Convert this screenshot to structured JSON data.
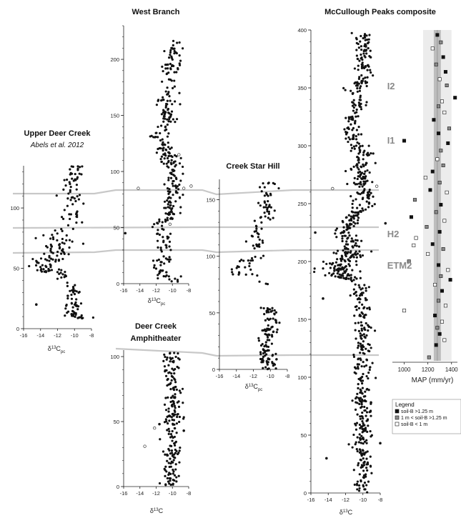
{
  "figure": {
    "axis_symbol": "δ",
    "axis_sup": "13",
    "axis_base": "C",
    "axis_sub": "pc",
    "colors": {
      "filled": "#111111",
      "open_stroke": "#333333",
      "correlation_line": "#c8c8c8",
      "band_outer": "#ececec",
      "band_inner": "#bdbdbd",
      "label_gray": "#8a8a8a"
    }
  },
  "chart_data": [
    {
      "id": "udc",
      "type": "scatter",
      "title": "Upper Deer Creek",
      "subtitle": "Abels et al. 2012",
      "xlabel_has_sub": true,
      "xlim": [
        -16,
        -8
      ],
      "xticks": [
        -16,
        -14,
        -12,
        -10,
        -8
      ],
      "ylim": [
        0,
        135
      ],
      "yticks": [
        0,
        50,
        100
      ],
      "bands": [
        {
          "y1": 8,
          "y2": 25,
          "seed": 11,
          "n": 42,
          "sd": 0.55,
          "t1": 0,
          "t2": 1
        },
        {
          "y1": 25,
          "y2": 45,
          "seed": 12,
          "n": 24,
          "sd": 0.5,
          "t1": 1,
          "t2": 0
        },
        {
          "y1": 45,
          "y2": 58,
          "seed": 13,
          "n": 45,
          "sd": 0.8,
          "t1": 0,
          "t2": 0
        },
        {
          "y1": 58,
          "y2": 85,
          "seed": 14,
          "n": 48,
          "sd": 1.0,
          "t1": 0,
          "t2": 0
        },
        {
          "y1": 85,
          "y2": 135,
          "seed": 15,
          "n": 60,
          "sd": 0.6,
          "t1": 0,
          "t2": 0
        }
      ],
      "centers": [
        [
          0,
          -9.9
        ],
        [
          10,
          -9.7
        ],
        [
          20,
          -10.3
        ],
        [
          30,
          -10.2
        ],
        [
          36,
          -10.5
        ],
        [
          45,
          -11.5
        ],
        [
          50,
          -13.5
        ],
        [
          55,
          -14.2
        ],
        [
          60,
          -12.0
        ],
        [
          70,
          -11.8
        ],
        [
          80,
          -11.5
        ],
        [
          88,
          -10.0
        ],
        [
          95,
          -10.2
        ],
        [
          105,
          -10.0
        ],
        [
          115,
          -10.4
        ],
        [
          125,
          -10.2
        ],
        [
          135,
          -9.8
        ]
      ],
      "extra": [
        {
          "x": -14.5,
          "y": 20,
          "open": false
        }
      ]
    },
    {
      "id": "wb",
      "type": "scatter",
      "title": "West Branch",
      "xlabel_has_sub": true,
      "xlim": [
        -16,
        -8
      ],
      "xticks": [
        -16,
        -14,
        -12,
        -10,
        -8
      ],
      "ylim": [
        0,
        230
      ],
      "yticks": [
        0,
        50,
        100,
        150,
        200
      ],
      "bands": [
        {
          "y1": 0,
          "y2": 30,
          "seed": 21,
          "n": 38,
          "sd": 0.7,
          "t1": 0,
          "t2": 0
        },
        {
          "y1": 30,
          "y2": 60,
          "seed": 22,
          "n": 40,
          "sd": 0.6,
          "t1": 0,
          "t2": 0
        },
        {
          "y1": 60,
          "y2": 112,
          "seed": 23,
          "n": 95,
          "sd": 0.55,
          "t1": 0,
          "t2": 0
        },
        {
          "y1": 112,
          "y2": 162,
          "seed": 24,
          "n": 90,
          "sd": 0.6,
          "t1": 0,
          "t2": 0
        },
        {
          "y1": 162,
          "y2": 218,
          "seed": 25,
          "n": 70,
          "sd": 0.55,
          "t1": 0,
          "t2": 0
        }
      ],
      "centers": [
        [
          0,
          -9.8
        ],
        [
          10,
          -11.6
        ],
        [
          20,
          -11.5
        ],
        [
          30,
          -10.5
        ],
        [
          42,
          -11.4
        ],
        [
          50,
          -12.0
        ],
        [
          58,
          -10.5
        ],
        [
          70,
          -9.7
        ],
        [
          85,
          -9.8
        ],
        [
          100,
          -10.0
        ],
        [
          112,
          -10.2
        ],
        [
          125,
          -11.3
        ],
        [
          132,
          -11.8
        ],
        [
          145,
          -10.5
        ],
        [
          155,
          -10.8
        ],
        [
          165,
          -11.0
        ],
        [
          180,
          -10.0
        ],
        [
          195,
          -10.2
        ],
        [
          205,
          -9.8
        ],
        [
          218,
          -10.0
        ]
      ],
      "extra": [
        {
          "x": -15.8,
          "y": 45,
          "open": false
        },
        {
          "x": -14.2,
          "y": 85,
          "open": true
        },
        {
          "x": -8.6,
          "y": 85,
          "open": true
        },
        {
          "x": -7.7,
          "y": 87,
          "open": true
        },
        {
          "x": -9.2,
          "y": 115,
          "open": true
        },
        {
          "x": -10.3,
          "y": 53,
          "open": true
        }
      ]
    },
    {
      "id": "csh",
      "type": "scatter",
      "title": "Creek Star Hill",
      "xlabel_has_sub": true,
      "xlim": [
        -16,
        -8
      ],
      "xticks": [
        -16,
        -14,
        -12,
        -10,
        -8
      ],
      "ylim": [
        0,
        168
      ],
      "yticks": [
        0,
        50,
        100,
        150
      ],
      "bands": [
        {
          "y1": 0,
          "y2": 55,
          "seed": 31,
          "n": 110,
          "sd": 0.5,
          "t1": 0,
          "t2": 0
        },
        {
          "y1": 75,
          "y2": 78,
          "seed": 32,
          "n": 3,
          "sd": 0.3,
          "t1": 0,
          "t2": 0
        },
        {
          "y1": 82,
          "y2": 98,
          "seed": 33,
          "n": 22,
          "sd": 0.7,
          "t1": 0,
          "t2": 0
        },
        {
          "y1": 98,
          "y2": 165,
          "seed": 34,
          "n": 70,
          "sd": 0.55,
          "t1": 0,
          "t2": 0
        }
      ],
      "centers": [
        [
          0,
          -10.2
        ],
        [
          20,
          -10.5
        ],
        [
          40,
          -10.0
        ],
        [
          55,
          -10.2
        ],
        [
          75,
          -10.2
        ],
        [
          85,
          -13.5
        ],
        [
          92,
          -13.8
        ],
        [
          100,
          -11.0
        ],
        [
          110,
          -11.8
        ],
        [
          120,
          -12.0
        ],
        [
          130,
          -11.0
        ],
        [
          140,
          -10.0
        ],
        [
          150,
          -10.4
        ],
        [
          165,
          -10.3
        ]
      ],
      "extra": []
    },
    {
      "id": "dca",
      "type": "scatter",
      "title": "Deer Creek",
      "title2": "Amphitheater",
      "xlabel_has_sub": false,
      "xlim": [
        -16,
        -8
      ],
      "xticks": [
        -16,
        -14,
        -12,
        -10,
        -8
      ],
      "ylim": [
        0,
        105
      ],
      "yticks": [
        0,
        50,
        100
      ],
      "bands": [
        {
          "y1": 0,
          "y2": 103,
          "seed": 41,
          "n": 200,
          "sd": 0.55,
          "t1": 0,
          "t2": 0
        }
      ],
      "centers": [
        [
          0,
          -10.2
        ],
        [
          20,
          -10.0
        ],
        [
          40,
          -10.3
        ],
        [
          60,
          -9.9
        ],
        [
          80,
          -10.0
        ],
        [
          103,
          -10.2
        ]
      ],
      "extra": [
        {
          "x": -13.4,
          "y": 31,
          "open": true
        },
        {
          "x": -12.2,
          "y": 45,
          "open": true
        },
        {
          "x": -8.6,
          "y": 43,
          "open": false
        },
        {
          "x": -11.6,
          "y": 48,
          "open": false
        }
      ]
    },
    {
      "id": "mcp",
      "type": "scatter",
      "title": "McCullough Peaks composite",
      "xlabel_has_sub": false,
      "xlim": [
        -16,
        -8
      ],
      "xticks": [
        -16,
        -14,
        -12,
        -10,
        -8
      ],
      "ylim": [
        0,
        400
      ],
      "yticks": [
        0,
        50,
        100,
        150,
        200,
        250,
        300,
        350,
        400
      ],
      "event_labels": [
        {
          "text": "I2",
          "y": 352,
          "x": -7.2
        },
        {
          "text": "I1",
          "y": 305,
          "x": -7.2
        },
        {
          "text": "H2",
          "y": 224,
          "x": -7.2
        },
        {
          "text": "ETM2",
          "y": 197,
          "x": -7.2
        }
      ],
      "bands": [
        {
          "y1": 0,
          "y2": 185,
          "seed": 51,
          "n": 320,
          "sd": 0.5,
          "t1": 0,
          "t2": 0
        },
        {
          "y1": 185,
          "y2": 210,
          "seed": 52,
          "n": 120,
          "sd": 0.9,
          "t1": 0,
          "t2": 0
        },
        {
          "y1": 210,
          "y2": 300,
          "seed": 53,
          "n": 220,
          "sd": 0.6,
          "t1": 0,
          "t2": 0
        },
        {
          "y1": 300,
          "y2": 398,
          "seed": 54,
          "n": 170,
          "sd": 0.55,
          "t1": 0,
          "t2": 0
        }
      ],
      "centers": [
        [
          0,
          -10.2
        ],
        [
          50,
          -10.0
        ],
        [
          100,
          -10.0
        ],
        [
          150,
          -10.0
        ],
        [
          180,
          -10.3
        ],
        [
          188,
          -12.5
        ],
        [
          195,
          -13.0
        ],
        [
          205,
          -11.5
        ],
        [
          215,
          -11.2
        ],
        [
          225,
          -12.2
        ],
        [
          235,
          -11.5
        ],
        [
          250,
          -9.8
        ],
        [
          265,
          -10.2
        ],
        [
          280,
          -10.3
        ],
        [
          295,
          -10.0
        ],
        [
          310,
          -11.3
        ],
        [
          320,
          -11.4
        ],
        [
          335,
          -10.5
        ],
        [
          345,
          -11.0
        ],
        [
          360,
          -10.0
        ],
        [
          380,
          -9.8
        ],
        [
          398,
          -10.0
        ]
      ],
      "extra": [
        {
          "x": -14.2,
          "y": 30,
          "open": false
        },
        {
          "x": -14.6,
          "y": 168,
          "open": false
        },
        {
          "x": -15.5,
          "y": 225,
          "open": false
        },
        {
          "x": -13.5,
          "y": 263,
          "open": true
        },
        {
          "x": -8.4,
          "y": 265,
          "open": true
        },
        {
          "x": -8.0,
          "y": 43,
          "open": false
        },
        {
          "x": -7.4,
          "y": 233,
          "open": false
        }
      ]
    },
    {
      "id": "map",
      "type": "scatter",
      "xlabel": "MAP (mm/yr)",
      "xlim": [
        900,
        1450
      ],
      "xticks": [
        1000,
        1200,
        1400
      ],
      "ylim": [
        130,
        400
      ],
      "yticks": [],
      "mean_line": 1280,
      "band_outer": [
        1160,
        1400
      ],
      "band_inner": [
        1250,
        1310
      ],
      "points": [
        {
          "x": 1280,
          "y": 396,
          "t": 0
        },
        {
          "x": 1310,
          "y": 390,
          "t": 1
        },
        {
          "x": 1240,
          "y": 385,
          "t": 2
        },
        {
          "x": 1330,
          "y": 378,
          "t": 0
        },
        {
          "x": 1270,
          "y": 372,
          "t": 1
        },
        {
          "x": 1350,
          "y": 366,
          "t": 0
        },
        {
          "x": 1300,
          "y": 360,
          "t": 2
        },
        {
          "x": 1360,
          "y": 355,
          "t": 1
        },
        {
          "x": 1430,
          "y": 345,
          "t": 0
        },
        {
          "x": 1320,
          "y": 342,
          "t": 2
        },
        {
          "x": 1290,
          "y": 338,
          "t": 1
        },
        {
          "x": 1340,
          "y": 333,
          "t": 2
        },
        {
          "x": 1250,
          "y": 327,
          "t": 0
        },
        {
          "x": 1380,
          "y": 320,
          "t": 1
        },
        {
          "x": 1290,
          "y": 316,
          "t": 0
        },
        {
          "x": 1000,
          "y": 310,
          "t": 0
        },
        {
          "x": 1370,
          "y": 308,
          "t": 0
        },
        {
          "x": 1310,
          "y": 302,
          "t": 1
        },
        {
          "x": 1280,
          "y": 295,
          "t": 2
        },
        {
          "x": 1330,
          "y": 290,
          "t": 1
        },
        {
          "x": 1240,
          "y": 285,
          "t": 0
        },
        {
          "x": 1180,
          "y": 280,
          "t": 2
        },
        {
          "x": 1300,
          "y": 276,
          "t": 1
        },
        {
          "x": 1220,
          "y": 270,
          "t": 0
        },
        {
          "x": 1360,
          "y": 268,
          "t": 2
        },
        {
          "x": 1090,
          "y": 262,
          "t": 1
        },
        {
          "x": 1310,
          "y": 258,
          "t": 0
        },
        {
          "x": 1270,
          "y": 252,
          "t": 1
        },
        {
          "x": 1060,
          "y": 248,
          "t": 0
        },
        {
          "x": 1340,
          "y": 245,
          "t": 2
        },
        {
          "x": 1190,
          "y": 240,
          "t": 1
        },
        {
          "x": 1300,
          "y": 236,
          "t": 0
        },
        {
          "x": 1100,
          "y": 231,
          "t": 2
        },
        {
          "x": 1240,
          "y": 226,
          "t": 0
        },
        {
          "x": 1080,
          "y": 225,
          "t": 2
        },
        {
          "x": 1330,
          "y": 222,
          "t": 1
        },
        {
          "x": 1200,
          "y": 218,
          "t": 2
        },
        {
          "x": 1040,
          "y": 212,
          "t": 1
        },
        {
          "x": 1290,
          "y": 209,
          "t": 0
        },
        {
          "x": 1370,
          "y": 205,
          "t": 2
        },
        {
          "x": 1310,
          "y": 200,
          "t": 1
        },
        {
          "x": 1390,
          "y": 197,
          "t": 0
        },
        {
          "x": 1260,
          "y": 193,
          "t": 2
        },
        {
          "x": 1320,
          "y": 188,
          "t": 0
        },
        {
          "x": 1000,
          "y": 172,
          "t": 2
        },
        {
          "x": 1290,
          "y": 180,
          "t": 1
        },
        {
          "x": 1350,
          "y": 176,
          "t": 2
        },
        {
          "x": 1260,
          "y": 168,
          "t": 0
        },
        {
          "x": 1320,
          "y": 163,
          "t": 2
        },
        {
          "x": 1280,
          "y": 158,
          "t": 1
        },
        {
          "x": 1300,
          "y": 153,
          "t": 0
        },
        {
          "x": 1340,
          "y": 148,
          "t": 2
        },
        {
          "x": 1270,
          "y": 144,
          "t": 0
        },
        {
          "x": 1210,
          "y": 134,
          "t": 1
        }
      ]
    }
  ],
  "legend": {
    "title": "Legend",
    "items": [
      {
        "label": "soil-B >1.25 m",
        "fill": "#111111"
      },
      {
        "label": "1 m < soil-B >1.25 m",
        "fill": "#8a8a8a"
      },
      {
        "label": "soil-B < 1 m",
        "fill": "#ffffff"
      }
    ]
  },
  "correlations": [
    {
      "name": "line-a",
      "points": [
        [
          18,
          354
        ],
        [
          132,
          353
        ],
        [
          162,
          350
        ],
        [
          283,
          350
        ],
        [
          303,
          353
        ],
        [
          410,
          350
        ],
        [
          530,
          350
        ]
      ]
    },
    {
      "name": "line-b",
      "points": [
        [
          18,
          319
        ],
        [
          283,
          318
        ],
        [
          300,
          318
        ],
        [
          410,
          318
        ],
        [
          530,
          318
        ]
      ]
    },
    {
      "name": "line-c",
      "points": [
        [
          18,
          271
        ],
        [
          132,
          271
        ],
        [
          162,
          266
        ],
        [
          283,
          266
        ],
        [
          303,
          272
        ],
        [
          410,
          266
        ],
        [
          530,
          266
        ]
      ]
    },
    {
      "name": "line-d",
      "points": [
        [
          303,
          498
        ],
        [
          410,
          497
        ],
        [
          530,
          497
        ]
      ]
    },
    {
      "name": "line-e",
      "points": [
        [
          162,
          488
        ],
        [
          283,
          494
        ],
        [
          303,
          498
        ]
      ]
    }
  ]
}
